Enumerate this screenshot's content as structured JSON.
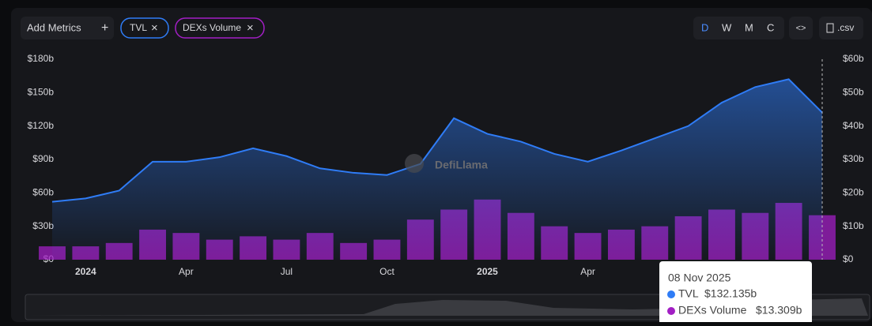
{
  "ui": {
    "add_metrics": "Add Metrics",
    "plus": "+",
    "remove": "×",
    "periods": [
      "D",
      "W",
      "M",
      "C"
    ],
    "embed": "<>",
    "csv": ".csv",
    "watermark": "DefiLlama"
  },
  "chart_data": {
    "type": "bar-line",
    "x": [
      "2023-12",
      "2024-01",
      "2024-02",
      "2024-03",
      "2024-04",
      "2024-05",
      "2024-06",
      "2024-07",
      "2024-08",
      "2024-09",
      "2024-10",
      "2024-11",
      "2024-12",
      "2025-01",
      "2025-02",
      "2025-03",
      "2025-04",
      "2025-05",
      "2025-06",
      "2025-07",
      "2025-08",
      "2025-09",
      "2025-10",
      "2025-11"
    ],
    "xlim": [
      "2023-12",
      "2025-11"
    ],
    "xticks": [
      {
        "value": "2024-01",
        "label": "2024"
      },
      {
        "value": "2024-04",
        "label": "Apr"
      },
      {
        "value": "2024-07",
        "label": "Jul"
      },
      {
        "value": "2024-10",
        "label": "Oct"
      },
      {
        "value": "2025-01",
        "label": "2025"
      },
      {
        "value": "2025-04",
        "label": "Apr"
      }
    ],
    "ylim": [
      0,
      180
    ],
    "yticks": [
      {
        "value": 0,
        "label": "$0"
      },
      {
        "value": 30,
        "label": "$30b"
      },
      {
        "value": 60,
        "label": "$60b"
      },
      {
        "value": 90,
        "label": "$90b"
      },
      {
        "value": 120,
        "label": "$120b"
      },
      {
        "value": 150,
        "label": "$150b"
      },
      {
        "value": 180,
        "label": "$180b"
      }
    ],
    "y2lim": [
      0,
      60
    ],
    "y2ticks": [
      {
        "value": 0,
        "label": "$0"
      },
      {
        "value": 10,
        "label": "$10b"
      },
      {
        "value": 20,
        "label": "$20b"
      },
      {
        "value": 30,
        "label": "$30b"
      },
      {
        "value": 40,
        "label": "$40b"
      },
      {
        "value": 50,
        "label": "$50b"
      },
      {
        "value": 60,
        "label": "$60b"
      }
    ],
    "series": [
      {
        "name": "TVL",
        "color": "#2f7cf6",
        "kind": "line",
        "axis": "y",
        "values": [
          52,
          55,
          62,
          88,
          88,
          92,
          100,
          93,
          82,
          78,
          76,
          86,
          127,
          113,
          106,
          95,
          88,
          98,
          109,
          120,
          141,
          155,
          162,
          132.135
        ],
        "value_labels": [
          null,
          null,
          null,
          null,
          null,
          null,
          null,
          null,
          null,
          null,
          null,
          null,
          null,
          null,
          null,
          null,
          null,
          null,
          null,
          null,
          null,
          null,
          null,
          "$132.135b"
        ]
      },
      {
        "name": "DEXs Volume",
        "color": "#a21fc4",
        "kind": "bar",
        "axis": "y2",
        "values": [
          4,
          4,
          5,
          9,
          8,
          6,
          7,
          6,
          8,
          5,
          6,
          12,
          15,
          18,
          14,
          10,
          8,
          9,
          10,
          13,
          15,
          14,
          17,
          13.309
        ],
        "value_labels": [
          null,
          null,
          null,
          null,
          null,
          null,
          null,
          null,
          null,
          null,
          null,
          null,
          null,
          null,
          null,
          null,
          null,
          null,
          null,
          null,
          null,
          null,
          null,
          "$13.309b"
        ]
      }
    ],
    "tooltip_date": "08 Nov 2025"
  }
}
